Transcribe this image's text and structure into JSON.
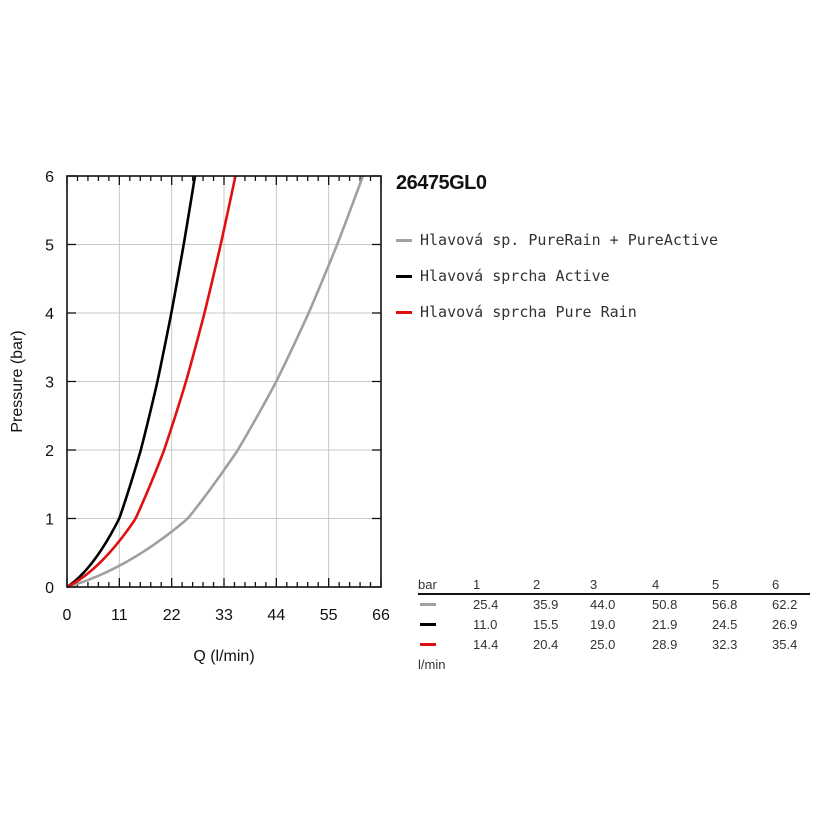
{
  "chart_data": {
    "type": "line",
    "title": "26475GL0",
    "xlabel": "Q (l/min)",
    "ylabel": "Pressure (bar)",
    "xlim": [
      0,
      66
    ],
    "ylim": [
      0,
      6
    ],
    "xticks": [
      "0",
      "11",
      "22",
      "33",
      "44",
      "55",
      "66"
    ],
    "yticks": [
      "0",
      "1",
      "2",
      "3",
      "4",
      "5",
      "6"
    ],
    "grid": true,
    "legend": "right",
    "series": [
      {
        "name": "Hlavová sp. PureRain + PureActive",
        "color": "#a0a0a0",
        "x": [
          0,
          25.4,
          35.9,
          44.0,
          50.8,
          56.8,
          62.2
        ],
        "y": [
          0,
          1,
          2,
          3,
          4,
          5,
          6
        ]
      },
      {
        "name": "Hlavová sprcha Active",
        "color": "#000000",
        "x": [
          0,
          11.0,
          15.5,
          19.0,
          21.9,
          24.5,
          26.9
        ],
        "y": [
          0,
          1,
          2,
          3,
          4,
          5,
          6
        ]
      },
      {
        "name": "Hlavová sprcha Pure Rain",
        "color": "#e01010",
        "x": [
          0,
          14.4,
          20.4,
          25.0,
          28.9,
          32.3,
          35.4
        ],
        "y": [
          0,
          1,
          2,
          3,
          4,
          5,
          6
        ]
      }
    ]
  },
  "table": {
    "bar_label": "bar",
    "unit_label": "l/min",
    "bars": [
      "1",
      "2",
      "3",
      "4",
      "5",
      "6"
    ],
    "rows": [
      {
        "color": "#a0a0a0",
        "values": [
          "25.4",
          "35.9",
          "44.0",
          "50.8",
          "56.8",
          "62.2"
        ]
      },
      {
        "color": "#000000",
        "values": [
          "11.0",
          "15.5",
          "19.0",
          "21.9",
          "24.5",
          "26.9"
        ]
      },
      {
        "color": "#e01010",
        "values": [
          "14.4",
          "20.4",
          "25.0",
          "28.9",
          "32.3",
          "35.4"
        ]
      }
    ]
  }
}
